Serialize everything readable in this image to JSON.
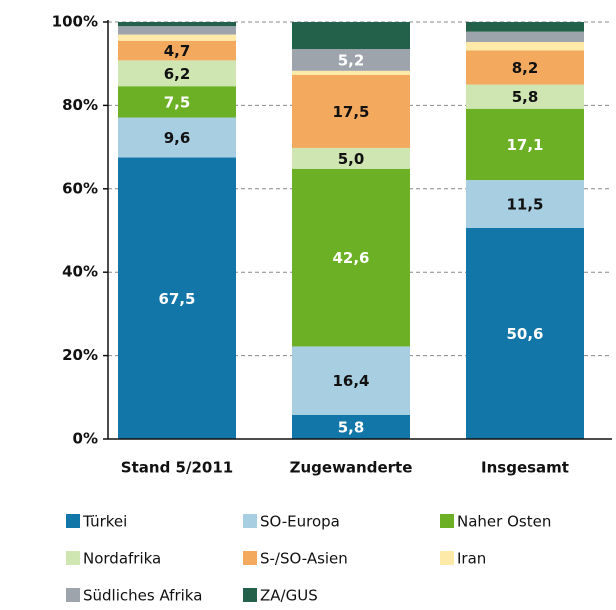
{
  "chart_data": {
    "type": "stacked_bar",
    "categories": [
      "Stand 5/2011",
      "Zugewanderte",
      "Insgesamt"
    ],
    "series": [
      {
        "name": "Türkei",
        "color": "#1376a8",
        "label_color": "#ffffff",
        "values": [
          67.5,
          5.8,
          50.6
        ],
        "value_labels": [
          "67,5",
          "5,8",
          "50,6"
        ]
      },
      {
        "name": "SO-Europa",
        "color": "#a7cee1",
        "label_color": "#111111",
        "values": [
          9.6,
          16.4,
          11.5
        ],
        "value_labels": [
          "9,6",
          "16,4",
          "11,5"
        ]
      },
      {
        "name": "Naher Osten",
        "color": "#6cb025",
        "label_color": "#ffffff",
        "values": [
          7.5,
          42.6,
          17.1
        ],
        "value_labels": [
          "7,5",
          "42,6",
          "17,1"
        ]
      },
      {
        "name": "Nordafrika",
        "color": "#cfe6b2",
        "label_color": "#111111",
        "values": [
          6.2,
          5.0,
          5.8
        ],
        "value_labels": [
          "6,2",
          "5,0",
          "5,8"
        ]
      },
      {
        "name": "S-/SO-Asien",
        "color": "#f4aa5e",
        "label_color": "#111111",
        "values": [
          4.7,
          17.5,
          8.2
        ],
        "value_labels": [
          "4,7",
          "17,5",
          "8,2"
        ]
      },
      {
        "name": "Iran",
        "color": "#fde9a8",
        "label_color": "#111111",
        "values": [
          1.5,
          1.0,
          2.0
        ],
        "value_labels": [
          null,
          null,
          null
        ]
      },
      {
        "name": "Südliches Afrika",
        "color": "#9ea4ab",
        "label_color": "#ffffff",
        "values": [
          2.0,
          5.2,
          2.5
        ],
        "value_labels": [
          null,
          "5,2",
          null
        ]
      },
      {
        "name": "ZA/GUS",
        "color": "#24614b",
        "label_color": "#ffffff",
        "values": [
          1.0,
          6.5,
          2.3
        ],
        "value_labels": [
          null,
          null,
          null
        ]
      }
    ],
    "ylim": [
      0,
      100
    ],
    "yticks": [
      {
        "value": 0,
        "label": "0%"
      },
      {
        "value": 20,
        "label": "20%"
      },
      {
        "value": 40,
        "label": "40%"
      },
      {
        "value": 60,
        "label": "60%"
      },
      {
        "value": 80,
        "label": "80%"
      },
      {
        "value": 100,
        "label": "100%"
      }
    ],
    "grid": true,
    "legend": "bottom"
  }
}
